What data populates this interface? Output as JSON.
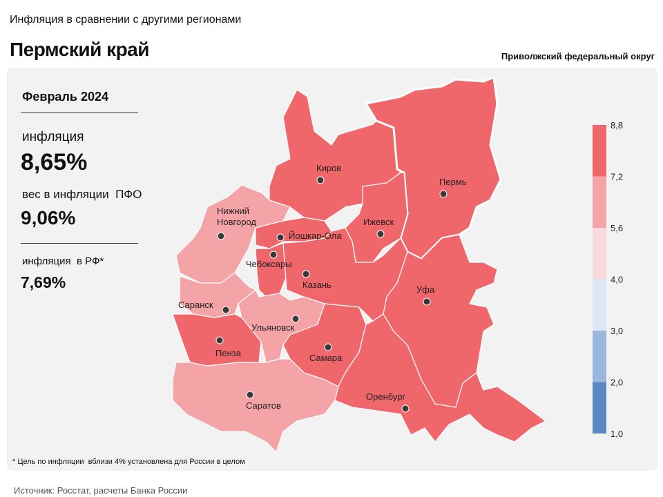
{
  "header": {
    "subtitle": "Инфляция в сравнении с другими регионами",
    "title": "Пермский край",
    "district": "Приволжский федеральный округ"
  },
  "panel": {
    "period": "Февраль 2024",
    "inflation_label": "инфляция",
    "inflation_value": "8,65%",
    "weight_label": "вес в инфляции  ПФО",
    "weight_value": "9,06%",
    "rf_label": "инфляция  в РФ*",
    "rf_value": "7,69%"
  },
  "regions": [
    {
      "name": "Киров",
      "color": "#f0676b"
    },
    {
      "name": "Пермь",
      "color": "#f0676b"
    },
    {
      "name": "Ижевск",
      "color": "#f0676b"
    },
    {
      "name": "Нижний Новгород",
      "color": "#f4a3a6"
    },
    {
      "name": "Йошкар-Ола",
      "color": "#f0676b"
    },
    {
      "name": "Чебоксары",
      "color": "#f0676b"
    },
    {
      "name": "Казань",
      "color": "#f0676b"
    },
    {
      "name": "Уфа",
      "color": "#f0676b"
    },
    {
      "name": "Саранск",
      "color": "#f4a3a6"
    },
    {
      "name": "Ульяновск",
      "color": "#f4a3a6"
    },
    {
      "name": "Пенза",
      "color": "#f0676b"
    },
    {
      "name": "Самара",
      "color": "#f0676b"
    },
    {
      "name": "Оренбург",
      "color": "#f0676b"
    },
    {
      "name": "Саратов",
      "color": "#f4a3a6"
    }
  ],
  "legend": {
    "ticks": [
      {
        "value": 1.0,
        "label": "1,0"
      },
      {
        "value": 2.0,
        "label": "2,0"
      },
      {
        "value": 3.0,
        "label": "3,0"
      },
      {
        "value": 4.0,
        "label": "4,0"
      },
      {
        "value": 5.6,
        "label": "5,6"
      },
      {
        "value": 7.2,
        "label": "7,2"
      },
      {
        "value": 8.8,
        "label": "8,8"
      }
    ],
    "colors": [
      "#5d88c6",
      "#9cb7dc",
      "#dde6f5",
      "#f9dadc",
      "#f4a3a6",
      "#f0676b"
    ]
  },
  "footnote": "* Цель по инфляции  вблизи 4% установлена для России в целом",
  "source": "Источник: Росстат, расчеты Банка России"
}
